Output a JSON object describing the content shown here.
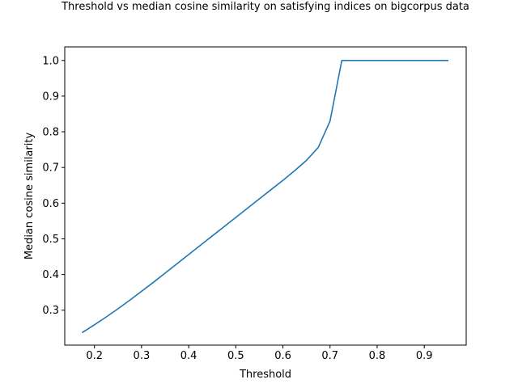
{
  "chart_data": {
    "type": "line",
    "title": "Threshold vs median cosine similarity on satisfying indices on bigcorpus data",
    "xlabel": "Threshold",
    "ylabel": "Median cosine similarity",
    "xlim": [
      0.137,
      0.989
    ],
    "ylim": [
      0.202,
      1.038
    ],
    "xticks": [
      0.2,
      0.3,
      0.4,
      0.5,
      0.6,
      0.7,
      0.8,
      0.9
    ],
    "xtick_labels": [
      "0.2",
      "0.3",
      "0.4",
      "0.5",
      "0.6",
      "0.7",
      "0.8",
      "0.9"
    ],
    "yticks": [
      0.3,
      0.4,
      0.5,
      0.6,
      0.7,
      0.8,
      0.9,
      1.0
    ],
    "ytick_labels": [
      "0.3",
      "0.4",
      "0.5",
      "0.6",
      "0.7",
      "0.8",
      "0.9",
      "1.0"
    ],
    "grid": false,
    "series": [
      {
        "color": "#1f77b4",
        "x": [
          0.175,
          0.2,
          0.225,
          0.25,
          0.275,
          0.3,
          0.325,
          0.35,
          0.375,
          0.4,
          0.425,
          0.45,
          0.475,
          0.5,
          0.525,
          0.55,
          0.575,
          0.6,
          0.625,
          0.65,
          0.675,
          0.7,
          0.725,
          0.75,
          0.775,
          0.8,
          0.825,
          0.85,
          0.875,
          0.9,
          0.925,
          0.95
        ],
        "y": [
          0.238,
          0.259,
          0.281,
          0.304,
          0.328,
          0.353,
          0.378,
          0.404,
          0.43,
          0.456,
          0.482,
          0.508,
          0.534,
          0.56,
          0.586,
          0.612,
          0.638,
          0.664,
          0.691,
          0.72,
          0.756,
          0.83,
          1.0,
          1.0,
          1.0,
          1.0,
          1.0,
          1.0,
          1.0,
          1.0,
          1.0,
          1.0
        ]
      }
    ]
  }
}
